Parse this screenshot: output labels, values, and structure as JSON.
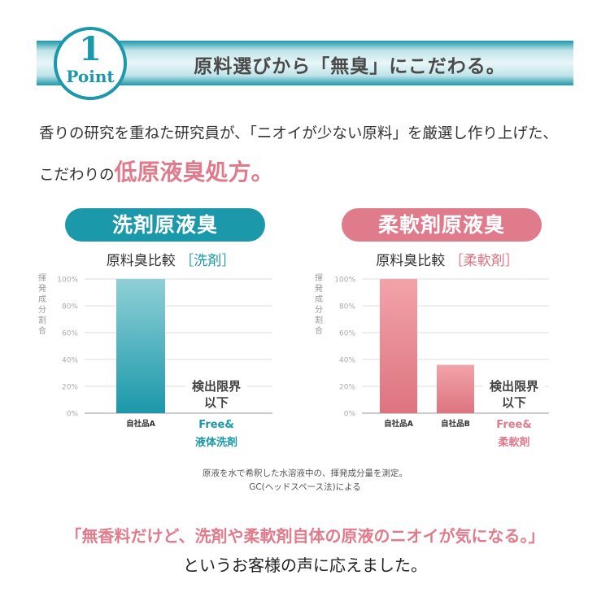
{
  "header": {
    "point_number": "1",
    "point_label": "Point",
    "title": "原料選びから「無臭」にこだわる。"
  },
  "intro": {
    "line1": "香りの研究を重ねた研究員が、「ニオイが少ない原料」を厳選し作り上げた、",
    "line2_prefix": "こだわりの",
    "line2_highlight": "低原液臭処方。"
  },
  "colors": {
    "teal": "#1b98aa",
    "pink": "#e07b8c"
  },
  "chart_data": [
    {
      "type": "bar",
      "badge": "洗剤原液臭",
      "title": "原料臭比較",
      "title_tag": "［洗剤］",
      "ylabel": "揮発成分割合",
      "ylim": [
        0,
        100
      ],
      "yticks": [
        "0%",
        "20%",
        "40%",
        "60%",
        "80%",
        "100%"
      ],
      "grid": true,
      "categories": [
        "自社品A",
        "Free& 液体洗剤"
      ],
      "values": [
        100,
        0
      ],
      "product_label": [
        "Free&",
        "液体洗剤"
      ],
      "annotation": [
        "検出限界",
        "以下"
      ],
      "color": "#1b98aa"
    },
    {
      "type": "bar",
      "badge": "柔軟剤原液臭",
      "title": "原料臭比較",
      "title_tag": "［柔軟剤］",
      "ylabel": "揮発成分割合",
      "ylim": [
        0,
        100
      ],
      "yticks": [
        "0%",
        "20%",
        "40%",
        "60%",
        "80%",
        "100%"
      ],
      "grid": true,
      "categories": [
        "自社品A",
        "自社品B",
        "Free& 柔軟剤"
      ],
      "values": [
        100,
        36,
        0
      ],
      "product_label": [
        "Free&",
        "柔軟剤"
      ],
      "annotation": [
        "検出限界",
        "以下"
      ],
      "color": "#e07b8c"
    }
  ],
  "notes": {
    "line1": "原液を水で希釈した水溶液中の、揮発成分量を測定。",
    "line2": "GC(ヘッドスペース法)による"
  },
  "quote": "「無香料だけど、洗剤や柔軟剤自体の原液のニオイが気になる。」",
  "closing": "というお客様の声に応えました。"
}
